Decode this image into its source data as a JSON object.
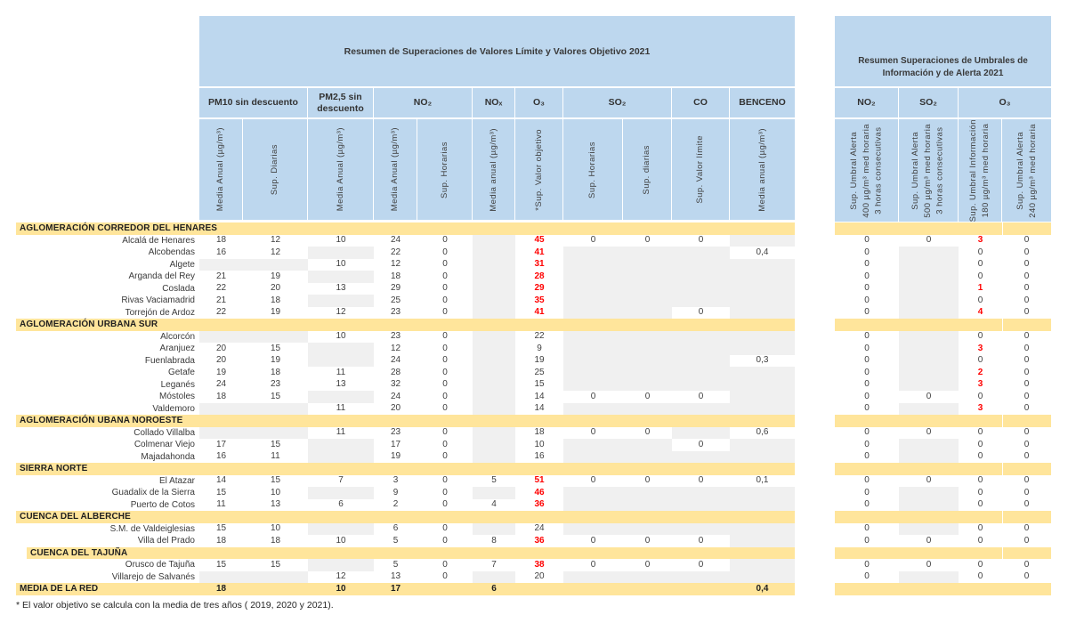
{
  "colors": {
    "header_blue": "#BDD7EE",
    "band_yellow": "#FFE59B",
    "nodata_gray": "#F0F0F0",
    "alert_red": "#FF0000"
  },
  "left_table": {
    "title": "Resumen de Superaciones de Valores Límite y Valores Objetivo 2021",
    "groups": [
      {
        "label": "PM10 sin descuento",
        "span": 2
      },
      {
        "label": "PM2,5 sin descuento",
        "span": 1
      },
      {
        "label": "NO₂",
        "span": 2
      },
      {
        "label": "NOₓ",
        "span": 1
      },
      {
        "label": "O₃",
        "span": 1
      },
      {
        "label": "SO₂",
        "span": 2
      },
      {
        "label": "CO",
        "span": 1
      },
      {
        "label": "BENCENO",
        "span": 1
      }
    ],
    "columns": [
      "Media Anual (µg/m³)",
      "Sup. Diarias",
      "Media Anual (µg/m³)",
      "Media Anual (µg/m³)",
      "Sup. Horarias",
      "Media anual (µg/m³)",
      "*Sup. Valor objetivo",
      "Sup. Horarias",
      "Sup. diarias",
      "Sup. Valor límite",
      "Media anual (µg/m³)"
    ],
    "footnote": "* El valor objetivo se calcula con la media de tres años ( 2019, 2020 y 2021)."
  },
  "right_table": {
    "title": "Resumen Superaciones de Umbrales de Información y de Alerta 2021",
    "groups": [
      {
        "label": "NO₂",
        "span": 1
      },
      {
        "label": "SO₂",
        "span": 1
      },
      {
        "label": "O₃",
        "span": 2
      }
    ],
    "columns": [
      "Sup. Umbral Alerta\n400 µg/m³ med horaria\n3 horas consecutivas",
      "Sup. Umbral Alerta\n500 µg/m³ med horaria\n3 horas consecutivas",
      "Sup. Umbral Información\n180 µg/m³ med horaria",
      "Sup. Umbral Alerta\n240 µg/m³ med horaria"
    ]
  },
  "sections": [
    {
      "label": "AGLOMERACIÓN CORREDOR DEL HENARES",
      "indent": false,
      "rows": [
        {
          "name": "Alcalá de Henares",
          "left": [
            "18",
            "12",
            "10",
            "24",
            "0",
            null,
            {
              "v": "45",
              "red": true
            },
            "0",
            "0",
            "0",
            null
          ],
          "right": [
            "0",
            "0",
            {
              "v": "3",
              "red": true
            },
            "0"
          ]
        },
        {
          "name": "Alcobendas",
          "left": [
            "16",
            "12",
            null,
            "22",
            "0",
            null,
            {
              "v": "41",
              "red": true
            },
            null,
            null,
            null,
            "0,4"
          ],
          "right": [
            "0",
            null,
            "0",
            "0"
          ]
        },
        {
          "name": "Algete",
          "left": [
            null,
            null,
            "10",
            "12",
            "0",
            null,
            {
              "v": "31",
              "red": true
            },
            null,
            null,
            null,
            null
          ],
          "right": [
            "0",
            null,
            "0",
            "0"
          ]
        },
        {
          "name": "Arganda del Rey",
          "left": [
            "21",
            "19",
            null,
            "18",
            "0",
            null,
            {
              "v": "28",
              "red": true
            },
            null,
            null,
            null,
            null
          ],
          "right": [
            "0",
            null,
            "0",
            "0"
          ]
        },
        {
          "name": "Coslada",
          "left": [
            "22",
            "20",
            "13",
            "29",
            "0",
            null,
            {
              "v": "29",
              "red": true
            },
            null,
            null,
            null,
            null
          ],
          "right": [
            "0",
            null,
            {
              "v": "1",
              "red": true
            },
            "0"
          ]
        },
        {
          "name": "Rivas Vaciamadrid",
          "left": [
            "21",
            "18",
            null,
            "25",
            "0",
            null,
            {
              "v": "35",
              "red": true
            },
            null,
            null,
            null,
            null
          ],
          "right": [
            "0",
            null,
            "0",
            "0"
          ]
        },
        {
          "name": "Torrejón de Ardoz",
          "left": [
            "22",
            "19",
            "12",
            "23",
            "0",
            null,
            {
              "v": "41",
              "red": true
            },
            null,
            null,
            "0",
            null
          ],
          "right": [
            "0",
            null,
            {
              "v": "4",
              "red": true
            },
            "0"
          ]
        }
      ]
    },
    {
      "label": "AGLOMERACIÓN URBANA SUR",
      "indent": false,
      "rows": [
        {
          "name": "Alcorcón",
          "left": [
            null,
            null,
            "10",
            "23",
            "0",
            null,
            "22",
            null,
            null,
            null,
            null
          ],
          "right": [
            "0",
            null,
            "0",
            "0"
          ]
        },
        {
          "name": "Aranjuez",
          "left": [
            "20",
            "15",
            null,
            "12",
            "0",
            null,
            "9",
            null,
            null,
            null,
            null
          ],
          "right": [
            "0",
            null,
            {
              "v": "3",
              "red": true
            },
            "0"
          ]
        },
        {
          "name": "Fuenlabrada",
          "left": [
            "20",
            "19",
            null,
            "24",
            "0",
            null,
            "19",
            null,
            null,
            null,
            "0,3"
          ],
          "right": [
            "0",
            null,
            "0",
            "0"
          ]
        },
        {
          "name": "Getafe",
          "left": [
            "19",
            "18",
            "11",
            "28",
            "0",
            null,
            "25",
            null,
            null,
            null,
            null
          ],
          "right": [
            "0",
            null,
            {
              "v": "2",
              "red": true
            },
            "0"
          ]
        },
        {
          "name": "Leganés",
          "left": [
            "24",
            "23",
            "13",
            "32",
            "0",
            null,
            "15",
            null,
            null,
            null,
            null
          ],
          "right": [
            "0",
            null,
            {
              "v": "3",
              "red": true
            },
            "0"
          ]
        },
        {
          "name": "Móstoles",
          "left": [
            "18",
            "15",
            null,
            "24",
            "0",
            null,
            "14",
            "0",
            "0",
            "0",
            null
          ],
          "right": [
            "0",
            "0",
            "0",
            "0"
          ]
        },
        {
          "name": "Valdemoro",
          "left": [
            null,
            null,
            "11",
            "20",
            "0",
            null,
            "14",
            null,
            null,
            null,
            null
          ],
          "right": [
            "0",
            null,
            {
              "v": "3",
              "red": true
            },
            "0"
          ]
        }
      ]
    },
    {
      "label": "AGLOMERACIÓN UBANA NOROESTE",
      "indent": false,
      "rows": [
        {
          "name": "Collado Villalba",
          "left": [
            null,
            null,
            "11",
            "23",
            "0",
            null,
            "18",
            "0",
            "0",
            null,
            "0,6"
          ],
          "right": [
            "0",
            "0",
            "0",
            "0"
          ]
        },
        {
          "name": "Colmenar Viejo",
          "left": [
            "17",
            "15",
            null,
            "17",
            "0",
            null,
            "10",
            null,
            null,
            "0",
            null
          ],
          "right": [
            "0",
            null,
            "0",
            "0"
          ]
        },
        {
          "name": "Majadahonda",
          "left": [
            "16",
            "11",
            null,
            "19",
            "0",
            null,
            "16",
            null,
            null,
            null,
            null
          ],
          "right": [
            "0",
            null,
            "0",
            "0"
          ]
        }
      ]
    },
    {
      "label": "SIERRA NORTE",
      "indent": false,
      "rows": [
        {
          "name": "El Atazar",
          "left": [
            "14",
            "15",
            "7",
            "3",
            "0",
            "5",
            {
              "v": "51",
              "red": true
            },
            "0",
            "0",
            "0",
            "0,1"
          ],
          "right": [
            "0",
            "0",
            "0",
            "0"
          ]
        },
        {
          "name": "Guadalix de la Sierra",
          "left": [
            "15",
            "10",
            null,
            "9",
            "0",
            null,
            {
              "v": "46",
              "red": true
            },
            null,
            null,
            null,
            null
          ],
          "right": [
            "0",
            null,
            "0",
            "0"
          ]
        },
        {
          "name": "Puerto de Cotos",
          "left": [
            "11",
            "13",
            "6",
            "2",
            "0",
            "4",
            {
              "v": "36",
              "red": true
            },
            null,
            null,
            null,
            null
          ],
          "right": [
            "0",
            null,
            "0",
            "0"
          ]
        }
      ]
    },
    {
      "label": "CUENCA DEL ALBERCHE",
      "indent": false,
      "rows": [
        {
          "name": "S.M. de Valdeiglesias",
          "left": [
            "15",
            "10",
            null,
            "6",
            "0",
            null,
            "24",
            null,
            null,
            null,
            null
          ],
          "right": [
            "0",
            null,
            "0",
            "0"
          ]
        },
        {
          "name": "Villa del Prado",
          "left": [
            "18",
            "18",
            "10",
            "5",
            "0",
            "8",
            {
              "v": "36",
              "red": true
            },
            "0",
            "0",
            "0",
            null
          ],
          "right": [
            "0",
            "0",
            "0",
            "0"
          ]
        }
      ]
    },
    {
      "label": "CUENCA DEL TAJUÑA",
      "indent": true,
      "rows": [
        {
          "name": "Orusco de Tajuña",
          "left": [
            "15",
            "15",
            null,
            "5",
            "0",
            "7",
            {
              "v": "38",
              "red": true
            },
            "0",
            "0",
            "0",
            null
          ],
          "right": [
            "0",
            "0",
            "0",
            "0"
          ]
        },
        {
          "name": "Villarejo de Salvanés",
          "left": [
            null,
            null,
            "12",
            "13",
            "0",
            null,
            "20",
            null,
            null,
            null,
            null
          ],
          "right": [
            "0",
            null,
            "0",
            "0"
          ]
        }
      ]
    }
  ],
  "summary": {
    "label": "MEDIA DE LA RED",
    "left": [
      "18",
      "",
      "10",
      "17",
      "",
      "6",
      "",
      "",
      "",
      "",
      "0,4"
    ],
    "right": [
      "",
      "",
      "",
      ""
    ]
  }
}
